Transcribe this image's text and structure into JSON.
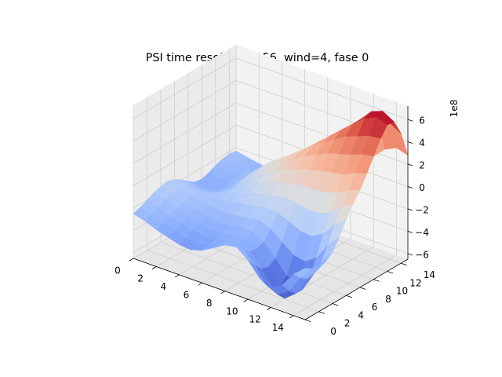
{
  "figure": {
    "title": "PSI time resolution 256, wind=4, fase 0"
  },
  "chart_data": {
    "type": "surface3d",
    "title": "PSI time resolution 256, wind=4, fase 0",
    "xlabel": "",
    "ylabel": "",
    "zlabel": "",
    "colormap": "coolwarm",
    "x_ticks": [
      "0",
      "2",
      "4",
      "6",
      "8",
      "10",
      "12",
      "14"
    ],
    "y_ticks": [
      "0",
      "2",
      "4",
      "6",
      "8",
      "10",
      "12",
      "14"
    ],
    "z_ticks": [
      "−6",
      "−4",
      "−2",
      "0",
      "2",
      "4",
      "6"
    ],
    "z_offset_label": "1e8",
    "xlim": [
      0,
      15
    ],
    "ylim": [
      0,
      15
    ],
    "zlim": [
      -6.5,
      7.2
    ],
    "z_scale": 100000000,
    "grid": true,
    "x": [
      0,
      1,
      2,
      3,
      4,
      5,
      6,
      7,
      8,
      9,
      10,
      11,
      12,
      13,
      14,
      15
    ],
    "y": [
      0,
      1,
      2,
      3,
      4,
      5,
      6,
      7,
      8,
      9,
      10,
      11,
      12,
      13,
      14,
      15
    ],
    "z": [
      [
        -2.5,
        -2.3,
        -2.0,
        -1.7,
        -1.5,
        -1.4,
        -1.6,
        -2.0,
        -2.5,
        -2.9,
        -3.0,
        -2.8,
        -2.5,
        -2.3,
        -2.2,
        -2.3
      ],
      [
        -2.8,
        -2.6,
        -2.3,
        -2.0,
        -1.8,
        -1.7,
        -1.8,
        -2.2,
        -2.7,
        -3.1,
        -3.2,
        -3.0,
        -2.7,
        -2.5,
        -2.4,
        -2.5
      ],
      [
        -3.2,
        -3.0,
        -2.7,
        -2.4,
        -2.2,
        -2.0,
        -2.0,
        -2.3,
        -2.7,
        -3.0,
        -3.0,
        -2.9,
        -2.7,
        -2.6,
        -2.6,
        -2.7
      ],
      [
        -3.5,
        -3.3,
        -3.0,
        -2.7,
        -2.5,
        -2.2,
        -2.0,
        -2.1,
        -2.3,
        -2.4,
        -2.3,
        -2.3,
        -2.3,
        -2.5,
        -2.7,
        -2.9
      ],
      [
        -3.8,
        -3.6,
        -3.3,
        -3.0,
        -2.7,
        -2.3,
        -1.9,
        -1.7,
        -1.7,
        -1.5,
        -1.2,
        -1.2,
        -1.5,
        -2.1,
        -2.8,
        -3.3
      ],
      [
        -3.9,
        -3.7,
        -3.4,
        -3.2,
        -2.9,
        -2.4,
        -1.8,
        -1.4,
        -1.1,
        -0.7,
        -0.3,
        -0.2,
        -0.6,
        -1.5,
        -2.7,
        -3.6
      ],
      [
        -3.6,
        -3.5,
        -3.3,
        -3.1,
        -2.8,
        -2.3,
        -1.6,
        -1.0,
        -0.5,
        0.0,
        0.4,
        0.6,
        0.3,
        -0.7,
        -2.2,
        -3.5
      ],
      [
        -3.0,
        -3.1,
        -3.1,
        -2.9,
        -2.6,
        -2.1,
        -1.4,
        -0.7,
        0.0,
        0.6,
        1.1,
        1.3,
        1.2,
        0.3,
        -1.5,
        -3.2
      ],
      [
        -2.4,
        -2.8,
        -3.0,
        -2.9,
        -2.6,
        -2.0,
        -1.2,
        -0.5,
        0.4,
        1.2,
        1.8,
        2.0,
        2.0,
        1.3,
        -0.6,
        -2.6
      ],
      [
        -2.2,
        -2.8,
        -3.3,
        -3.4,
        -3.2,
        -2.4,
        -1.3,
        -0.3,
        0.6,
        1.5,
        2.3,
        2.8,
        2.9,
        2.4,
        0.6,
        -1.7
      ],
      [
        -3.0,
        -3.8,
        -4.5,
        -4.7,
        -4.3,
        -3.2,
        -1.7,
        -0.4,
        0.8,
        1.8,
        2.8,
        3.5,
        3.8,
        3.4,
        1.9,
        -0.6
      ],
      [
        -4.2,
        -5.2,
        -5.9,
        -6.1,
        -5.5,
        -4.0,
        -2.2,
        -0.6,
        0.8,
        2.1,
        3.3,
        4.2,
        4.7,
        4.4,
        3.0,
        0.5
      ],
      [
        -4.7,
        -5.7,
        -6.4,
        -6.5,
        -5.8,
        -4.2,
        -2.3,
        -0.6,
        0.9,
        2.3,
        3.6,
        4.8,
        5.6,
        5.6,
        4.2,
        1.6
      ],
      [
        -4.1,
        -5.0,
        -5.6,
        -5.6,
        -4.9,
        -3.5,
        -1.7,
        -0.2,
        1.2,
        2.5,
        3.9,
        5.2,
        6.4,
        6.7,
        5.3,
        2.6
      ],
      [
        -2.8,
        -3.5,
        -3.9,
        -3.8,
        -3.2,
        -2.0,
        -0.5,
        0.7,
        1.8,
        3.0,
        4.3,
        5.6,
        6.9,
        7.1,
        5.7,
        3.1
      ],
      [
        -1.9,
        -2.3,
        -2.5,
        -2.4,
        -1.9,
        -0.9,
        0.3,
        1.3,
        2.2,
        3.3,
        4.5,
        5.7,
        6.6,
        6.5,
        5.1,
        2.8
      ]
    ]
  }
}
